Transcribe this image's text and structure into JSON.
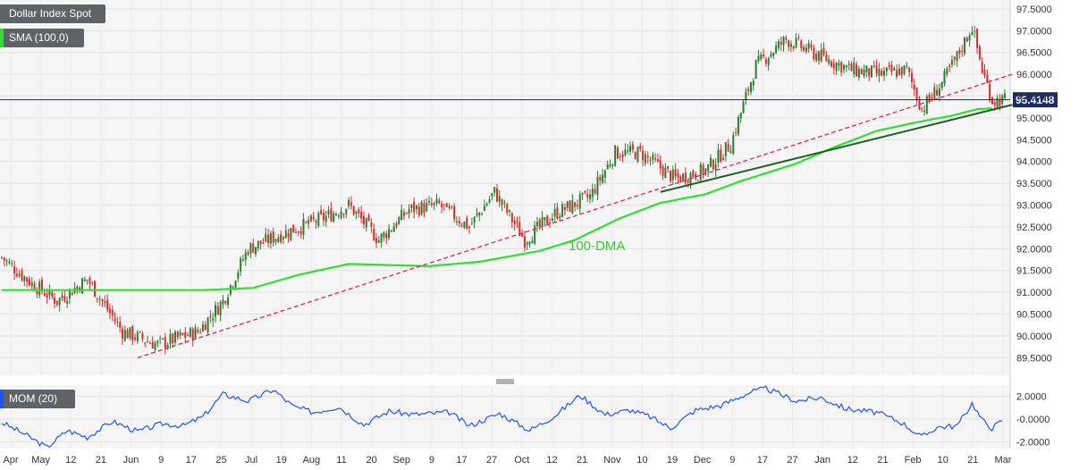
{
  "chart_data": [
    {
      "type": "candlestick",
      "title": "Dollar Index Spot",
      "indicator_label": "SMA (100,0)",
      "annotation": "100-DMA",
      "last_price": "95.4148",
      "ylim": [
        89.2,
        97.6
      ],
      "y_ticks": [
        "97.5000",
        "97.0000",
        "96.5000",
        "96.0000",
        "95.5000",
        "95.0000",
        "94.5000",
        "94.0000",
        "93.5000",
        "93.0000",
        "92.5000",
        "92.0000",
        "91.5000",
        "91.0000",
        "90.5000",
        "90.0000",
        "89.5000"
      ],
      "x_ticks": [
        "Apr",
        "May",
        "12",
        "21",
        "Jun",
        "9",
        "17",
        "25",
        "Jul",
        "19",
        "Aug",
        "11",
        "20",
        "Sep",
        "9",
        "17",
        "27",
        "Oct",
        "12",
        "21",
        "Nov",
        "10",
        "19",
        "Dec",
        "9",
        "17",
        "27",
        "Jan",
        "12",
        "21",
        "Feb",
        "10",
        "21",
        "Mar"
      ],
      "close_anchors": [
        [
          0,
          91.8
        ],
        [
          12,
          91.2
        ],
        [
          22,
          90.8
        ],
        [
          34,
          91.3
        ],
        [
          48,
          90.1
        ],
        [
          62,
          89.8
        ],
        [
          78,
          90.1
        ],
        [
          88,
          90.8
        ],
        [
          98,
          92.0
        ],
        [
          114,
          92.4
        ],
        [
          128,
          92.7
        ],
        [
          138,
          93.0
        ],
        [
          150,
          92.2
        ],
        [
          162,
          92.9
        ],
        [
          174,
          93.0
        ],
        [
          186,
          92.5
        ],
        [
          196,
          93.3
        ],
        [
          208,
          92.2
        ],
        [
          220,
          92.8
        ],
        [
          234,
          93.2
        ],
        [
          244,
          94.2
        ],
        [
          254,
          94.2
        ],
        [
          268,
          93.6
        ],
        [
          280,
          93.8
        ],
        [
          290,
          94.4
        ],
        [
          300,
          96.2
        ],
        [
          312,
          96.8
        ],
        [
          326,
          96.4
        ],
        [
          338,
          96.1
        ],
        [
          350,
          96.0
        ],
        [
          360,
          96.1
        ],
        [
          366,
          95.2
        ],
        [
          374,
          95.8
        ],
        [
          380,
          96.4
        ],
        [
          386,
          97.1
        ],
        [
          390,
          96.1
        ],
        [
          394,
          95.4
        ],
        [
          397,
          95.41
        ]
      ],
      "sma100_anchors": [
        [
          0,
          91.05
        ],
        [
          40,
          91.05
        ],
        [
          80,
          91.05
        ],
        [
          100,
          91.1
        ],
        [
          118,
          91.4
        ],
        [
          138,
          91.65
        ],
        [
          170,
          91.6
        ],
        [
          190,
          91.7
        ],
        [
          214,
          91.95
        ],
        [
          228,
          92.2
        ],
        [
          246,
          92.7
        ],
        [
          262,
          93.05
        ],
        [
          280,
          93.25
        ],
        [
          294,
          93.55
        ],
        [
          316,
          93.95
        ],
        [
          330,
          94.3
        ],
        [
          348,
          94.7
        ],
        [
          364,
          94.9
        ],
        [
          378,
          95.05
        ],
        [
          388,
          95.2
        ],
        [
          394,
          95.22
        ]
      ],
      "trendlines": [
        {
          "style": "dashed",
          "from": [
            54,
            89.5
          ],
          "to": [
            402,
            96.0
          ]
        },
        {
          "style": "solid",
          "from": [
            262,
            93.3
          ],
          "to": [
            402,
            95.3
          ]
        }
      ]
    },
    {
      "type": "line",
      "title": "MOM (20)",
      "ylim": [
        -2.6,
        3.0
      ],
      "y_ticks": [
        "2.0000",
        "-0.0000",
        "-2.0000"
      ],
      "series_anchors": [
        [
          0,
          -0.3
        ],
        [
          8,
          -1.2
        ],
        [
          18,
          -2.5
        ],
        [
          26,
          -1.0
        ],
        [
          34,
          -1.6
        ],
        [
          44,
          -0.2
        ],
        [
          54,
          -1.1
        ],
        [
          64,
          -0.4
        ],
        [
          72,
          -0.6
        ],
        [
          80,
          0.2
        ],
        [
          88,
          2.2
        ],
        [
          98,
          1.6
        ],
        [
          108,
          2.6
        ],
        [
          116,
          1.1
        ],
        [
          124,
          0.6
        ],
        [
          134,
          1.1
        ],
        [
          144,
          -0.5
        ],
        [
          154,
          0.7
        ],
        [
          164,
          0.4
        ],
        [
          178,
          0.6
        ],
        [
          186,
          -0.6
        ],
        [
          198,
          0.5
        ],
        [
          210,
          -1.0
        ],
        [
          220,
          0.3
        ],
        [
          230,
          2.1
        ],
        [
          240,
          0.4
        ],
        [
          250,
          0.8
        ],
        [
          258,
          0.2
        ],
        [
          266,
          -0.8
        ],
        [
          276,
          0.8
        ],
        [
          286,
          1.2
        ],
        [
          298,
          2.4
        ],
        [
          304,
          2.7
        ],
        [
          316,
          1.6
        ],
        [
          326,
          1.9
        ],
        [
          336,
          0.9
        ],
        [
          348,
          0.6
        ],
        [
          358,
          -0.3
        ],
        [
          366,
          -1.6
        ],
        [
          372,
          -0.7
        ],
        [
          380,
          -0.6
        ],
        [
          386,
          1.4
        ],
        [
          390,
          -0.1
        ],
        [
          394,
          -0.8
        ],
        [
          398,
          -0.1
        ]
      ]
    }
  ]
}
